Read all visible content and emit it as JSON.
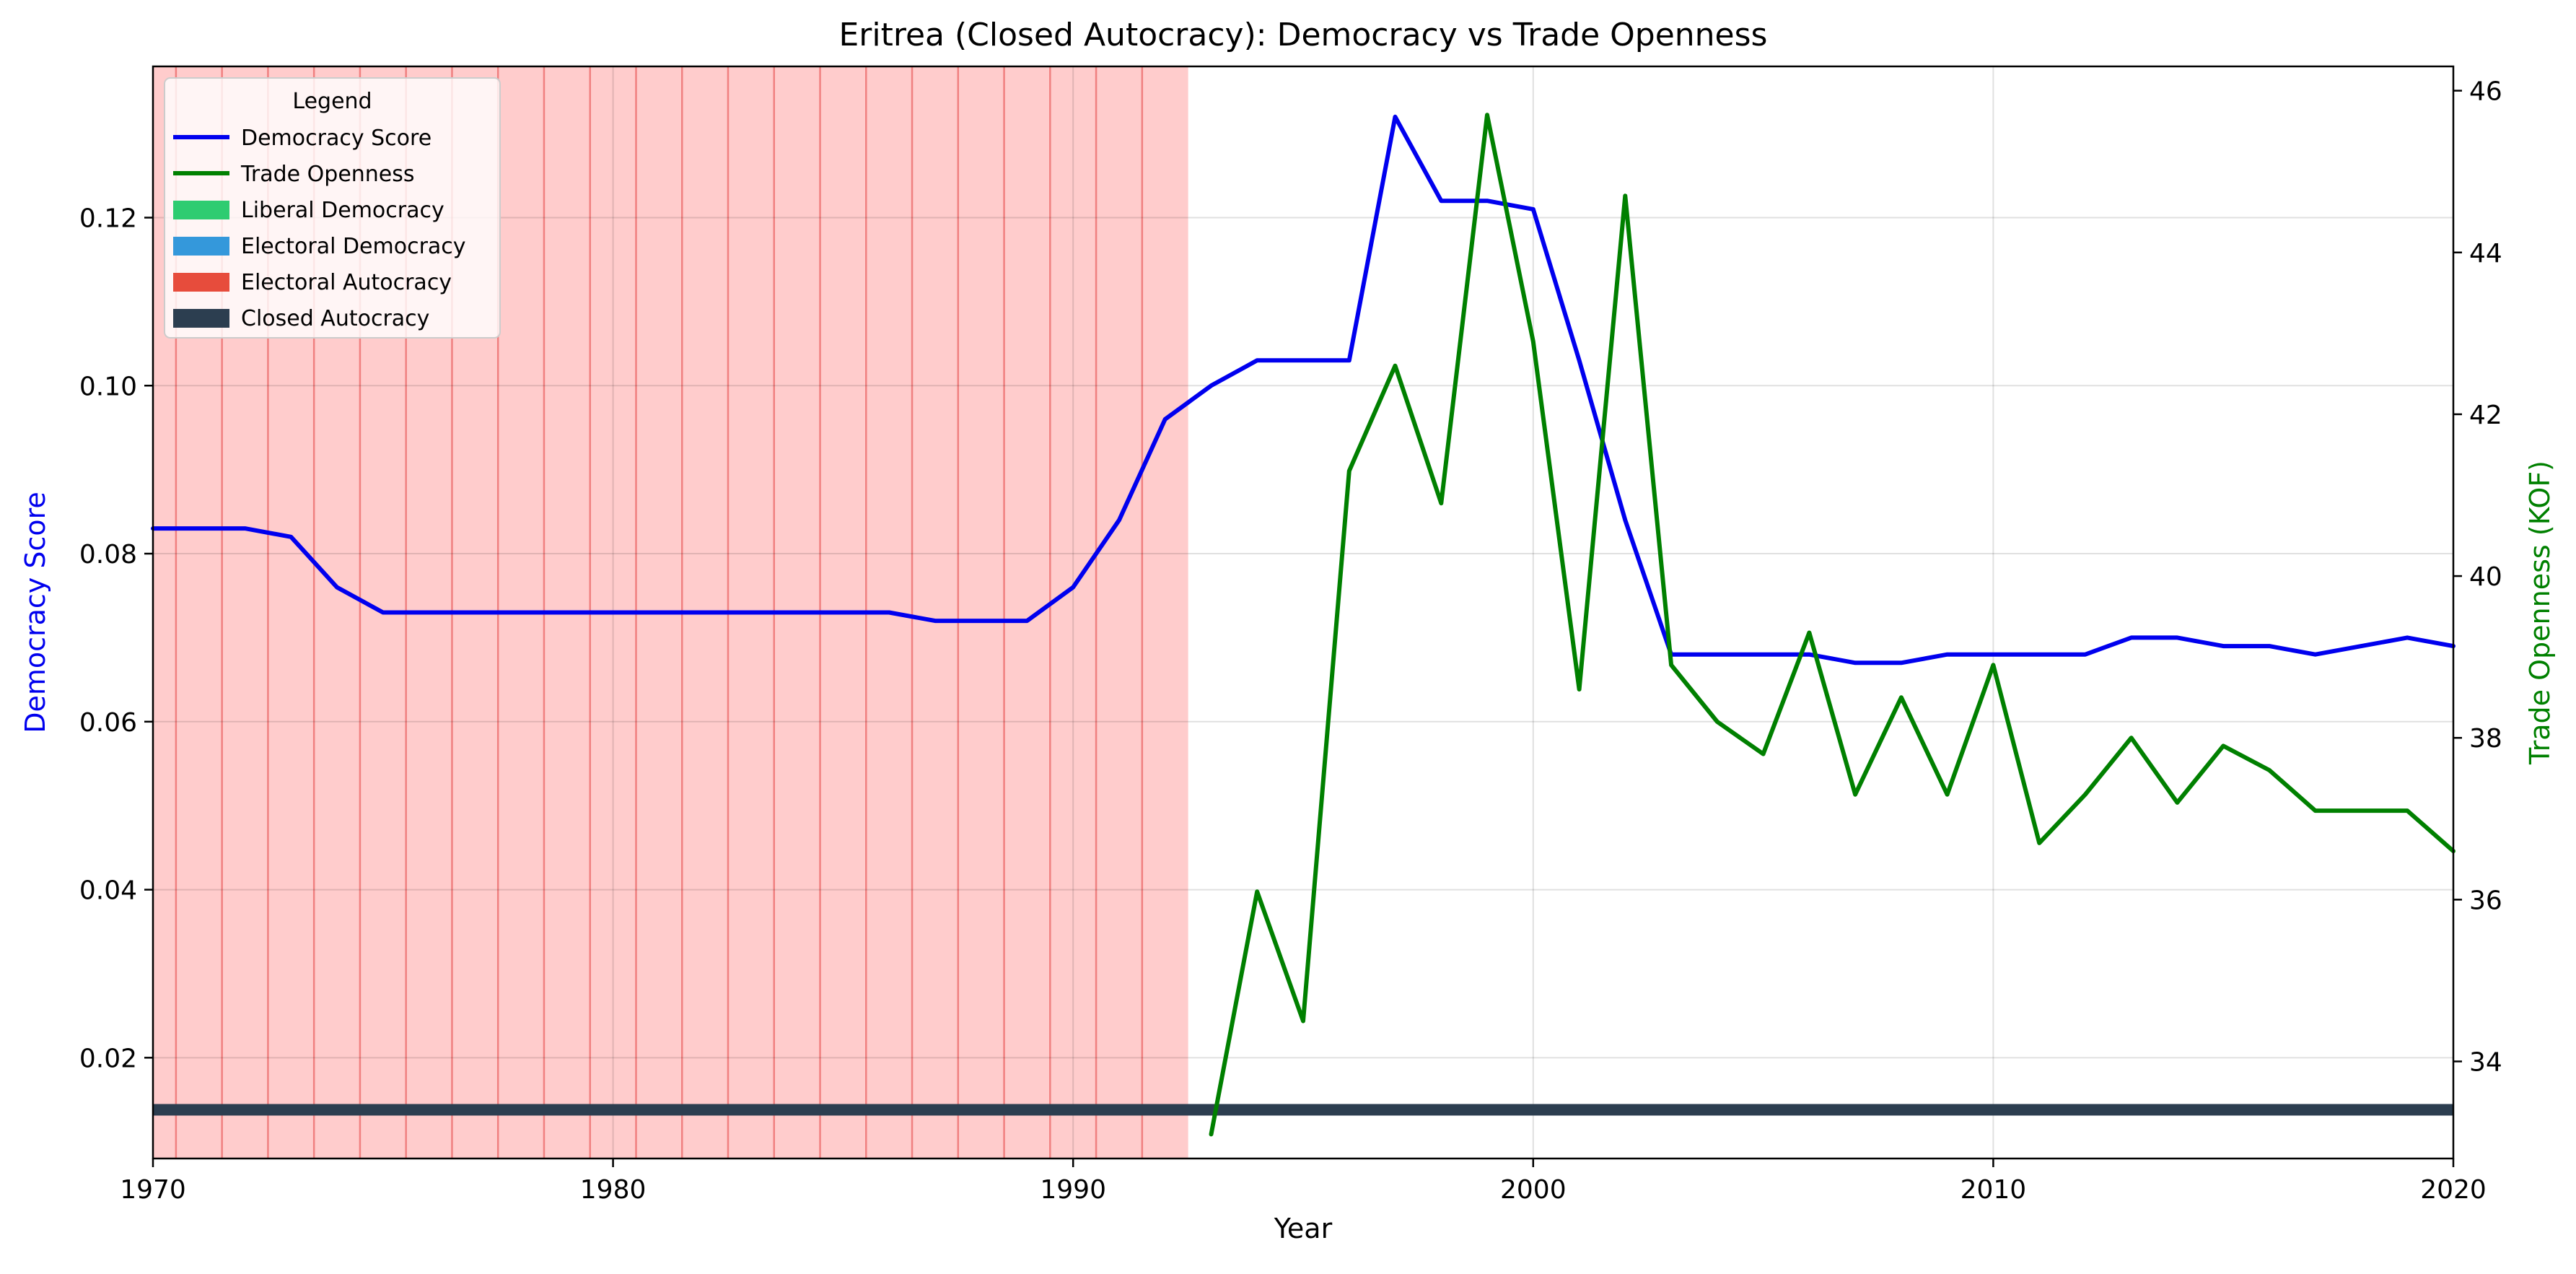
{
  "chart_data": {
    "type": "line",
    "title": "Eritrea (Closed Autocracy): Democracy vs Trade Openness",
    "xlabel": "Year",
    "ylabel_left": "Democracy Score",
    "ylabel_right": "Trade Openness (KOF)",
    "xlim": [
      1970,
      2020
    ],
    "ylim_left": [
      0.008,
      0.138
    ],
    "ylim_right": [
      32.8,
      46.3
    ],
    "x_ticks": [
      1970,
      1980,
      1990,
      2000,
      2010,
      2020
    ],
    "y_ticks_left": [
      0.02,
      0.04,
      0.06,
      0.08,
      0.1,
      0.12
    ],
    "y_tick_labels_left": [
      "0.02",
      "0.04",
      "0.06",
      "0.08",
      "0.10",
      "0.12"
    ],
    "y_ticks_right": [
      34,
      36,
      38,
      40,
      42,
      44,
      46
    ],
    "y_tick_labels_right": [
      "34",
      "36",
      "38",
      "40",
      "42",
      "44",
      "46"
    ],
    "grid": true,
    "colors": {
      "democracy": "#0000ee",
      "trade": "#008000",
      "liberal_democracy": "#2ecc71",
      "electoral_democracy": "#3498db",
      "electoral_autocracy": "#e74c3c",
      "closed_autocracy": "#2c3e50",
      "shade_fill": "#ffcccc",
      "shade_line": "#f08080"
    },
    "series": [
      {
        "name": "Democracy Score",
        "axis": "left",
        "x": [
          1970,
          1971,
          1972,
          1973,
          1974,
          1975,
          1976,
          1977,
          1978,
          1979,
          1980,
          1981,
          1982,
          1983,
          1984,
          1985,
          1986,
          1987,
          1988,
          1989,
          1990,
          1991,
          1992,
          1993,
          1994,
          1995,
          1996,
          1997,
          1998,
          1999,
          2000,
          2001,
          2002,
          2003,
          2004,
          2005,
          2006,
          2007,
          2008,
          2009,
          2010,
          2011,
          2012,
          2013,
          2014,
          2015,
          2016,
          2017,
          2018,
          2019,
          2020
        ],
        "values": [
          0.083,
          0.083,
          0.083,
          0.082,
          0.076,
          0.073,
          0.073,
          0.073,
          0.073,
          0.073,
          0.073,
          0.073,
          0.073,
          0.073,
          0.073,
          0.073,
          0.073,
          0.072,
          0.072,
          0.072,
          0.076,
          0.084,
          0.096,
          0.1,
          0.103,
          0.103,
          0.103,
          0.132,
          0.122,
          0.122,
          0.121,
          0.103,
          0.084,
          0.068,
          0.068,
          0.068,
          0.068,
          0.067,
          0.067,
          0.068,
          0.068,
          0.068,
          0.068,
          0.07,
          0.07,
          0.069,
          0.069,
          0.068,
          0.069,
          0.07,
          0.069
        ]
      },
      {
        "name": "Trade Openness",
        "axis": "right",
        "x": [
          1993,
          1994,
          1995,
          1996,
          1997,
          1998,
          1999,
          2000,
          2001,
          2002,
          2003,
          2004,
          2005,
          2006,
          2007,
          2008,
          2009,
          2010,
          2011,
          2012,
          2013,
          2014,
          2015,
          2016,
          2017,
          2018,
          2019,
          2020
        ],
        "values": [
          33.1,
          36.1,
          34.5,
          41.3,
          42.6,
          40.9,
          45.7,
          42.9,
          38.6,
          44.7,
          38.9,
          38.2,
          37.8,
          39.3,
          37.3,
          38.5,
          37.3,
          38.9,
          36.7,
          37.3,
          38.0,
          37.2,
          37.9,
          37.6,
          37.1,
          37.1,
          37.1,
          36.6
        ]
      }
    ],
    "shaded_span": {
      "x_start": 1970,
      "x_end": 1992.5,
      "year_lines": [
        1970.5,
        1971.5,
        1972.5,
        1973.5,
        1974.5,
        1975.5,
        1976.5,
        1977.5,
        1978.5,
        1979.5,
        1980.5,
        1981.5,
        1982.5,
        1983.5,
        1984.5,
        1985.5,
        1986.5,
        1987.5,
        1988.5,
        1989.5,
        1990.5,
        1991.5
      ]
    },
    "regime_band": {
      "label": "Closed Autocracy",
      "value": 0.0138,
      "x_start": 1970,
      "x_end": 2020
    },
    "legend": {
      "title": "Legend",
      "position": "top-left",
      "entries": [
        {
          "label": "Democracy Score",
          "kind": "line",
          "color": "#0000ee"
        },
        {
          "label": "Trade Openness",
          "kind": "line",
          "color": "#008000"
        },
        {
          "label": "Liberal Democracy",
          "kind": "patch",
          "color": "#2ecc71"
        },
        {
          "label": "Electoral Democracy",
          "kind": "patch",
          "color": "#3498db"
        },
        {
          "label": "Electoral Autocracy",
          "kind": "patch",
          "color": "#e74c3c"
        },
        {
          "label": "Closed Autocracy",
          "kind": "patch",
          "color": "#2c3e50"
        }
      ]
    }
  }
}
